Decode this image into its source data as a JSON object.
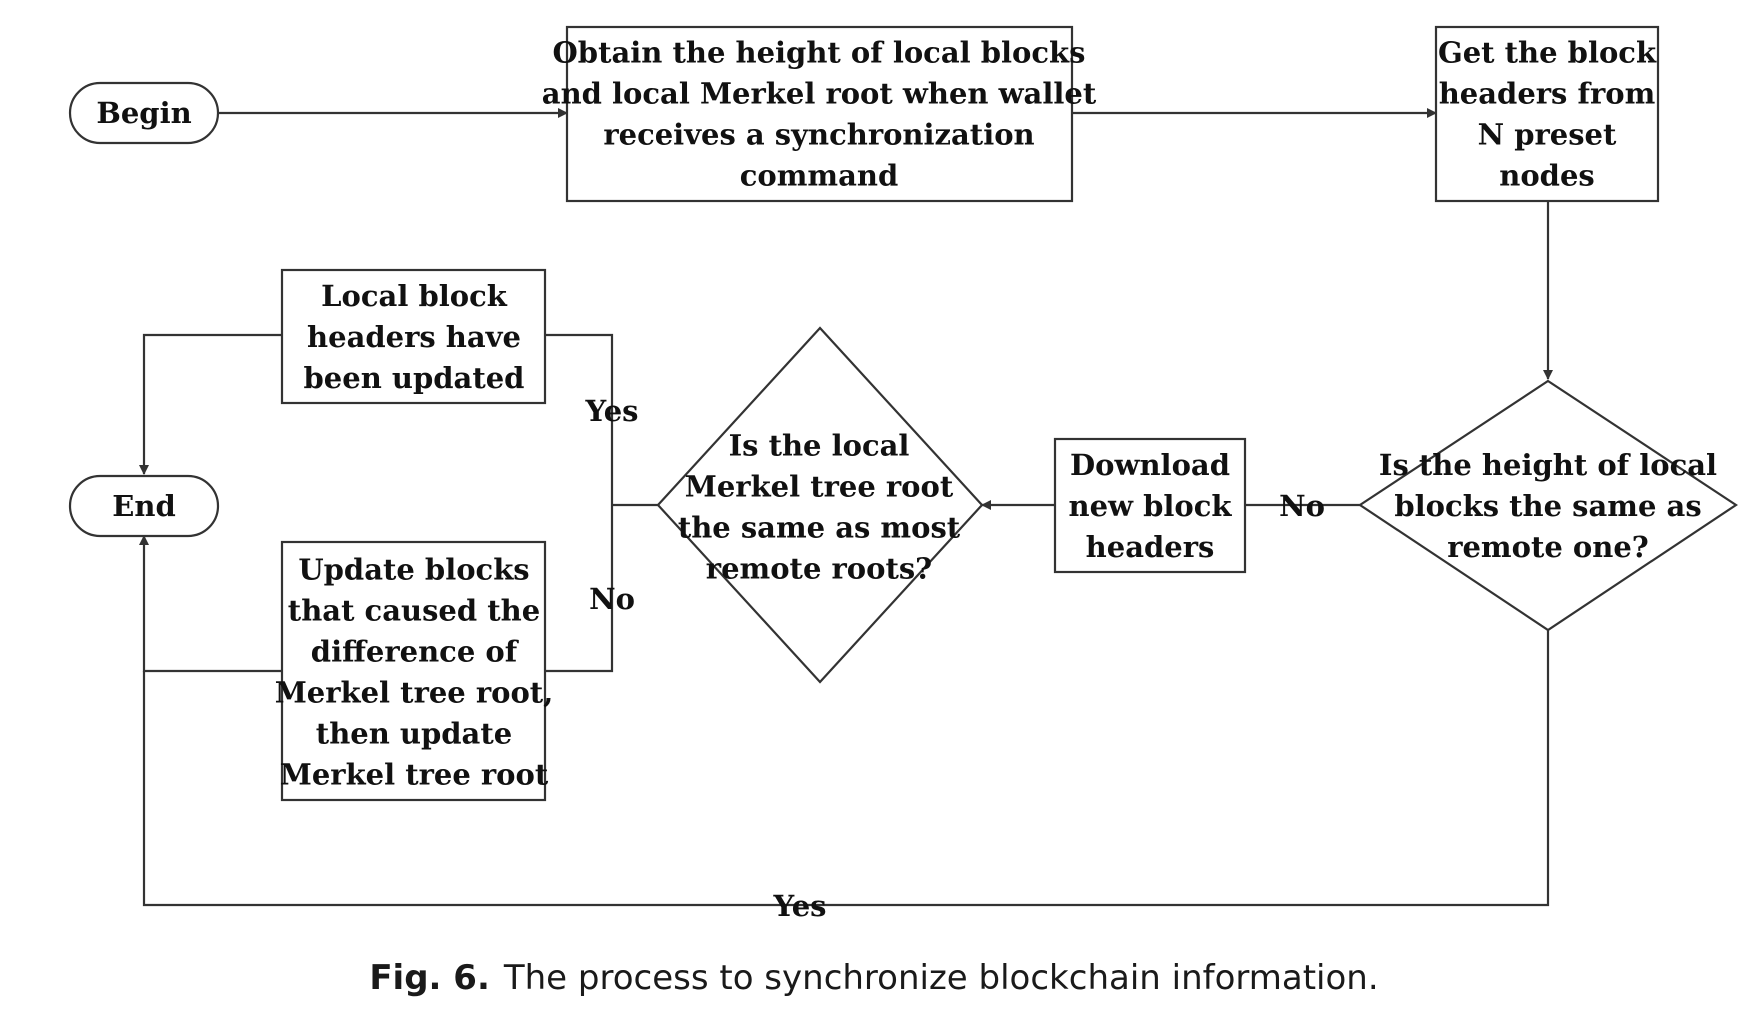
{
  "nodes": {
    "begin": "Begin",
    "end": "End",
    "obtain": [
      "Obtain the height of local blocks",
      "and local Merkel root when wallet",
      "receives a synchronization",
      "command"
    ],
    "get_headers": [
      "Get the block",
      "headers from",
      "N preset",
      "nodes"
    ],
    "height_check": [
      "Is the height of local",
      "blocks the same as",
      "remote one?"
    ],
    "download": [
      "Download",
      "new block",
      "headers"
    ],
    "merkle_check": [
      "Is the local",
      "Merkel tree root",
      "the same as most",
      "remote roots?"
    ],
    "updated": [
      "Local block",
      "headers have",
      "been updated"
    ],
    "update_blocks": [
      "Update blocks",
      "that caused the",
      "difference of",
      "Merkel tree root,",
      "then update",
      "Merkel tree root"
    ]
  },
  "edge_labels": {
    "height_no": "No",
    "height_yes": "Yes",
    "merkle_yes": "Yes",
    "merkle_no": "No"
  },
  "caption": {
    "label": "Fig. 6.",
    "text": "The process to synchronize blockchain information."
  }
}
